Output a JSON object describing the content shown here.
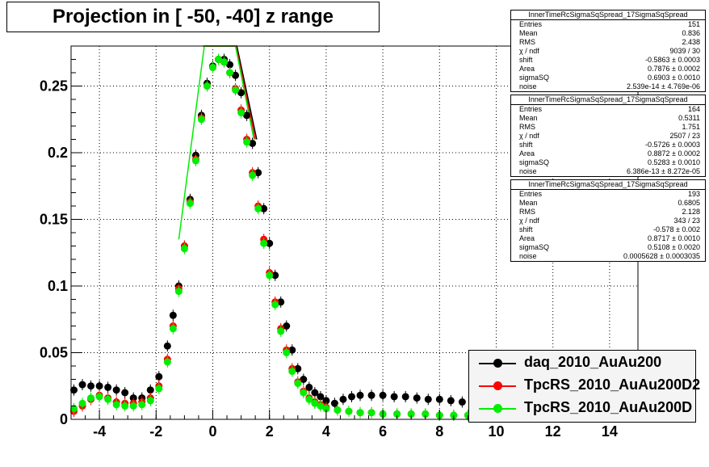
{
  "title": "Projection in [ -50, -40] z range",
  "stats": [
    {
      "header": "InnerTimeRcSigmaSqSpread_17SigmaSqSpread",
      "rows": [
        [
          "Entries",
          "151"
        ],
        [
          "Mean",
          "0.836"
        ],
        [
          "RMS",
          "2.438"
        ],
        [
          "χ  / ndf",
          "9039 / 30"
        ],
        [
          "shift",
          "-0.5863 ± 0.0003"
        ],
        [
          "Area",
          "0.7876 ± 0.0002"
        ],
        [
          "sigmaSQ",
          "0.6903 ± 0.0010"
        ],
        [
          "noise",
          "2.539e-14 ± 4.769e-06"
        ]
      ]
    },
    {
      "header": "InnerTimeRcSigmaSqSpread_17SigmaSqSpread",
      "rows": [
        [
          "Entries",
          "164"
        ],
        [
          "Mean",
          "0.5311"
        ],
        [
          "RMS",
          "1.751"
        ],
        [
          "χ  / ndf",
          "2507 / 23"
        ],
        [
          "shift",
          "-0.5726 ± 0.0003"
        ],
        [
          "Area",
          "0.8872 ± 0.0002"
        ],
        [
          "sigmaSQ",
          "0.5283 ± 0.0010"
        ],
        [
          "noise",
          "6.386e-13 ± 8.272e-05"
        ]
      ]
    },
    {
      "header": "InnerTimeRcSigmaSqSpread_17SigmaSqSpread",
      "rows": [
        [
          "Entries",
          "193"
        ],
        [
          "Mean",
          "0.6805"
        ],
        [
          "RMS",
          "2.128"
        ],
        [
          "χ  / ndf",
          "343 / 23"
        ],
        [
          "shift",
          "-0.578 ± 0.002"
        ],
        [
          "Area",
          "0.8717 ± 0.0010"
        ],
        [
          "sigmaSQ",
          "0.5108 ± 0.0020"
        ],
        [
          "noise",
          "0.0005628 ± 0.0003035"
        ]
      ]
    }
  ],
  "chart_data": {
    "type": "scatter",
    "title": "Projection in [ -50, -40] z range",
    "xlabel": "",
    "ylabel": "",
    "xlim": [
      -5,
      15
    ],
    "ylim": [
      0,
      0.28
    ],
    "x_ticks": [
      "-4",
      "-2",
      "0",
      "2",
      "4",
      "6",
      "8",
      "10",
      "12",
      "14"
    ],
    "y_ticks": [
      "0",
      "0.05",
      "0.1",
      "0.15",
      "0.2",
      "0.25"
    ],
    "grid": true,
    "legend_position": "bottom-right",
    "series": [
      {
        "name": "daq_2010_AuAu200",
        "color": "#000000",
        "points": [
          [
            -4.9,
            0.022
          ],
          [
            -4.6,
            0.026
          ],
          [
            -4.3,
            0.025
          ],
          [
            -4.0,
            0.025
          ],
          [
            -3.7,
            0.024
          ],
          [
            -3.4,
            0.022
          ],
          [
            -3.1,
            0.02
          ],
          [
            -2.8,
            0.016
          ],
          [
            -2.5,
            0.016
          ],
          [
            -2.2,
            0.022
          ],
          [
            -1.9,
            0.032
          ],
          [
            -1.6,
            0.055
          ],
          [
            -1.4,
            0.078
          ],
          [
            -1.2,
            0.1
          ],
          [
            -1.0,
            0.13
          ],
          [
            -0.8,
            0.165
          ],
          [
            -0.6,
            0.198
          ],
          [
            -0.4,
            0.228
          ],
          [
            -0.2,
            0.252
          ],
          [
            0.0,
            0.265
          ],
          [
            0.2,
            0.27
          ],
          [
            0.4,
            0.27
          ],
          [
            0.6,
            0.266
          ],
          [
            0.8,
            0.258
          ],
          [
            1.0,
            0.245
          ],
          [
            1.2,
            0.228
          ],
          [
            1.4,
            0.207
          ],
          [
            1.6,
            0.185
          ],
          [
            1.8,
            0.158
          ],
          [
            2.0,
            0.132
          ],
          [
            2.2,
            0.108
          ],
          [
            2.4,
            0.088
          ],
          [
            2.6,
            0.07
          ],
          [
            2.8,
            0.052
          ],
          [
            3.0,
            0.038
          ],
          [
            3.2,
            0.03
          ],
          [
            3.4,
            0.024
          ],
          [
            3.6,
            0.02
          ],
          [
            3.8,
            0.017
          ],
          [
            4.0,
            0.014
          ],
          [
            4.3,
            0.012
          ],
          [
            4.6,
            0.015
          ],
          [
            4.9,
            0.017
          ],
          [
            5.2,
            0.018
          ],
          [
            5.6,
            0.018
          ],
          [
            6.0,
            0.018
          ],
          [
            6.4,
            0.017
          ],
          [
            6.8,
            0.017
          ],
          [
            7.2,
            0.016
          ],
          [
            7.6,
            0.015
          ],
          [
            8.0,
            0.015
          ],
          [
            8.4,
            0.014
          ],
          [
            8.8,
            0.013
          ],
          [
            9.2,
            0.013
          ]
        ]
      },
      {
        "name": "TpcRS_2010_AuAu200D2",
        "color": "#ff0000",
        "points": [
          [
            -4.9,
            0.006
          ],
          [
            -4.6,
            0.01
          ],
          [
            -4.3,
            0.015
          ],
          [
            -4.0,
            0.018
          ],
          [
            -3.7,
            0.016
          ],
          [
            -3.4,
            0.013
          ],
          [
            -3.1,
            0.012
          ],
          [
            -2.8,
            0.012
          ],
          [
            -2.5,
            0.013
          ],
          [
            -2.2,
            0.016
          ],
          [
            -1.9,
            0.025
          ],
          [
            -1.6,
            0.045
          ],
          [
            -1.4,
            0.07
          ],
          [
            -1.2,
            0.098
          ],
          [
            -1.0,
            0.13
          ],
          [
            -0.8,
            0.163
          ],
          [
            -0.6,
            0.195
          ],
          [
            -0.4,
            0.226
          ],
          [
            -0.2,
            0.25
          ],
          [
            0.0,
            0.264
          ],
          [
            0.2,
            0.27
          ],
          [
            0.4,
            0.268
          ],
          [
            0.6,
            0.26
          ],
          [
            0.8,
            0.248
          ],
          [
            1.0,
            0.232
          ],
          [
            1.2,
            0.21
          ],
          [
            1.4,
            0.185
          ],
          [
            1.6,
            0.16
          ],
          [
            1.8,
            0.135
          ],
          [
            2.0,
            0.11
          ],
          [
            2.2,
            0.088
          ],
          [
            2.4,
            0.068
          ],
          [
            2.6,
            0.052
          ],
          [
            2.8,
            0.038
          ],
          [
            3.0,
            0.028
          ],
          [
            3.2,
            0.021
          ],
          [
            3.4,
            0.016
          ],
          [
            3.6,
            0.013
          ],
          [
            3.8,
            0.011
          ],
          [
            4.0,
            0.009
          ],
          [
            4.4,
            0.007
          ],
          [
            4.8,
            0.006
          ],
          [
            5.2,
            0.005
          ],
          [
            5.6,
            0.005
          ],
          [
            6.0,
            0.004
          ],
          [
            6.5,
            0.004
          ],
          [
            7.0,
            0.004
          ],
          [
            7.5,
            0.004
          ],
          [
            8.0,
            0.003
          ],
          [
            8.5,
            0.003
          ],
          [
            9.0,
            0.003
          ]
        ]
      },
      {
        "name": "TpcRS_2010_AuAu200D",
        "color": "#00ee00",
        "points": [
          [
            -4.9,
            0.008
          ],
          [
            -4.6,
            0.012
          ],
          [
            -4.3,
            0.016
          ],
          [
            -4.0,
            0.017
          ],
          [
            -3.7,
            0.015
          ],
          [
            -3.4,
            0.011
          ],
          [
            -3.1,
            0.01
          ],
          [
            -2.8,
            0.01
          ],
          [
            -2.5,
            0.011
          ],
          [
            -2.2,
            0.014
          ],
          [
            -1.9,
            0.023
          ],
          [
            -1.6,
            0.043
          ],
          [
            -1.4,
            0.068
          ],
          [
            -1.2,
            0.096
          ],
          [
            -1.0,
            0.128
          ],
          [
            -0.8,
            0.162
          ],
          [
            -0.6,
            0.194
          ],
          [
            -0.4,
            0.225
          ],
          [
            -0.2,
            0.25
          ],
          [
            0.0,
            0.264
          ],
          [
            0.2,
            0.27
          ],
          [
            0.4,
            0.268
          ],
          [
            0.6,
            0.26
          ],
          [
            0.8,
            0.247
          ],
          [
            1.0,
            0.23
          ],
          [
            1.2,
            0.208
          ],
          [
            1.4,
            0.183
          ],
          [
            1.6,
            0.158
          ],
          [
            1.8,
            0.132
          ],
          [
            2.0,
            0.108
          ],
          [
            2.2,
            0.086
          ],
          [
            2.4,
            0.066
          ],
          [
            2.6,
            0.05
          ],
          [
            2.8,
            0.036
          ],
          [
            3.0,
            0.027
          ],
          [
            3.2,
            0.02
          ],
          [
            3.4,
            0.015
          ],
          [
            3.6,
            0.012
          ],
          [
            3.8,
            0.01
          ],
          [
            4.0,
            0.008
          ],
          [
            4.4,
            0.007
          ],
          [
            4.8,
            0.006
          ],
          [
            5.2,
            0.005
          ],
          [
            5.6,
            0.005
          ],
          [
            6.0,
            0.004
          ],
          [
            6.5,
            0.004
          ],
          [
            7.0,
            0.004
          ],
          [
            7.5,
            0.004
          ],
          [
            8.0,
            0.003
          ],
          [
            8.5,
            0.003
          ],
          [
            9.0,
            0.003
          ]
        ]
      }
    ],
    "fit_curves": [
      {
        "color": "#000000",
        "points": [
          [
            -0.3,
            0.28
          ],
          [
            0.85,
            0.28
          ],
          [
            1.55,
            0.21
          ]
        ]
      },
      {
        "color": "#ff0000",
        "points": [
          [
            -0.35,
            0.28
          ],
          [
            0.82,
            0.28
          ],
          [
            1.5,
            0.21
          ]
        ]
      },
      {
        "color": "#00ee00",
        "points": [
          [
            -1.2,
            0.135
          ],
          [
            -0.3,
            0.28
          ],
          [
            0.8,
            0.28
          ],
          [
            1.45,
            0.21
          ]
        ]
      }
    ]
  }
}
